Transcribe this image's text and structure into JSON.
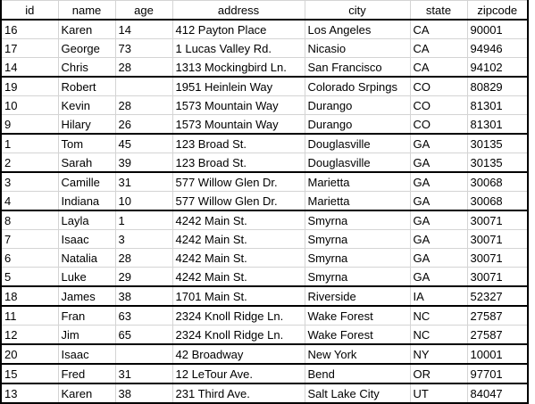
{
  "columns": [
    "id",
    "name",
    "age",
    "address",
    "city",
    "state",
    "zipcode"
  ],
  "rows": [
    {
      "id": "16",
      "name": "Karen",
      "age": "14",
      "address": "412 Payton Place",
      "city": "Los Angeles",
      "state": "CA",
      "zipcode": "90001",
      "group_start": true
    },
    {
      "id": "17",
      "name": "George",
      "age": "73",
      "address": "1 Lucas Valley Rd.",
      "city": "Nicasio",
      "state": "CA",
      "zipcode": "94946",
      "group_start": false
    },
    {
      "id": "14",
      "name": "Chris",
      "age": "28",
      "address": "1313 Mockingbird Ln.",
      "city": "San Francisco",
      "state": "CA",
      "zipcode": "94102",
      "group_start": false
    },
    {
      "id": "19",
      "name": "Robert",
      "age": "",
      "address": "1951 Heinlein Way",
      "city": "Colorado Srpings",
      "state": "CO",
      "zipcode": "80829",
      "group_start": true
    },
    {
      "id": "10",
      "name": "Kevin",
      "age": "28",
      "address": "1573 Mountain Way",
      "city": "Durango",
      "state": "CO",
      "zipcode": "81301",
      "group_start": false
    },
    {
      "id": "9",
      "name": "Hilary",
      "age": "26",
      "address": "1573 Mountain Way",
      "city": "Durango",
      "state": "CO",
      "zipcode": "81301",
      "group_start": false
    },
    {
      "id": "1",
      "name": "Tom",
      "age": "45",
      "address": "123 Broad St.",
      "city": "Douglasville",
      "state": "GA",
      "zipcode": "30135",
      "group_start": true
    },
    {
      "id": "2",
      "name": "Sarah",
      "age": "39",
      "address": "123 Broad St.",
      "city": "Douglasville",
      "state": "GA",
      "zipcode": "30135",
      "group_start": false
    },
    {
      "id": "3",
      "name": "Camille",
      "age": "31",
      "address": "577 Willow Glen Dr.",
      "city": "Marietta",
      "state": "GA",
      "zipcode": "30068",
      "group_start": true
    },
    {
      "id": "4",
      "name": "Indiana",
      "age": "10",
      "address": "577 Willow Glen Dr.",
      "city": "Marietta",
      "state": "GA",
      "zipcode": "30068",
      "group_start": false
    },
    {
      "id": "8",
      "name": "Layla",
      "age": "1",
      "address": "4242 Main St.",
      "city": "Smyrna",
      "state": "GA",
      "zipcode": "30071",
      "group_start": true
    },
    {
      "id": "7",
      "name": "Isaac",
      "age": "3",
      "address": "4242 Main St.",
      "city": "Smyrna",
      "state": "GA",
      "zipcode": "30071",
      "group_start": false
    },
    {
      "id": "6",
      "name": "Natalia",
      "age": "28",
      "address": "4242 Main St.",
      "city": "Smyrna",
      "state": "GA",
      "zipcode": "30071",
      "group_start": false
    },
    {
      "id": "5",
      "name": "Luke",
      "age": "29",
      "address": "4242 Main St.",
      "city": "Smyrna",
      "state": "GA",
      "zipcode": "30071",
      "group_start": false
    },
    {
      "id": "18",
      "name": "James",
      "age": "38",
      "address": "1701 Main St.",
      "city": "Riverside",
      "state": "IA",
      "zipcode": "52327",
      "group_start": true
    },
    {
      "id": "11",
      "name": "Fran",
      "age": "63",
      "address": "2324 Knoll Ridge Ln.",
      "city": "Wake Forest",
      "state": "NC",
      "zipcode": "27587",
      "group_start": true
    },
    {
      "id": "12",
      "name": "Jim",
      "age": "65",
      "address": "2324 Knoll Ridge Ln.",
      "city": "Wake Forest",
      "state": "NC",
      "zipcode": "27587",
      "group_start": false
    },
    {
      "id": "20",
      "name": "Isaac",
      "age": "",
      "address": "42 Broadway",
      "city": "New York",
      "state": "NY",
      "zipcode": "10001",
      "group_start": true
    },
    {
      "id": "15",
      "name": "Fred",
      "age": "31",
      "address": "12 LeTour Ave.",
      "city": "Bend",
      "state": "OR",
      "zipcode": "97701",
      "group_start": true
    },
    {
      "id": "13",
      "name": "Karen",
      "age": "38",
      "address": "231 Third Ave.",
      "city": "Salt Lake City",
      "state": "UT",
      "zipcode": "84047",
      "group_start": true
    }
  ]
}
